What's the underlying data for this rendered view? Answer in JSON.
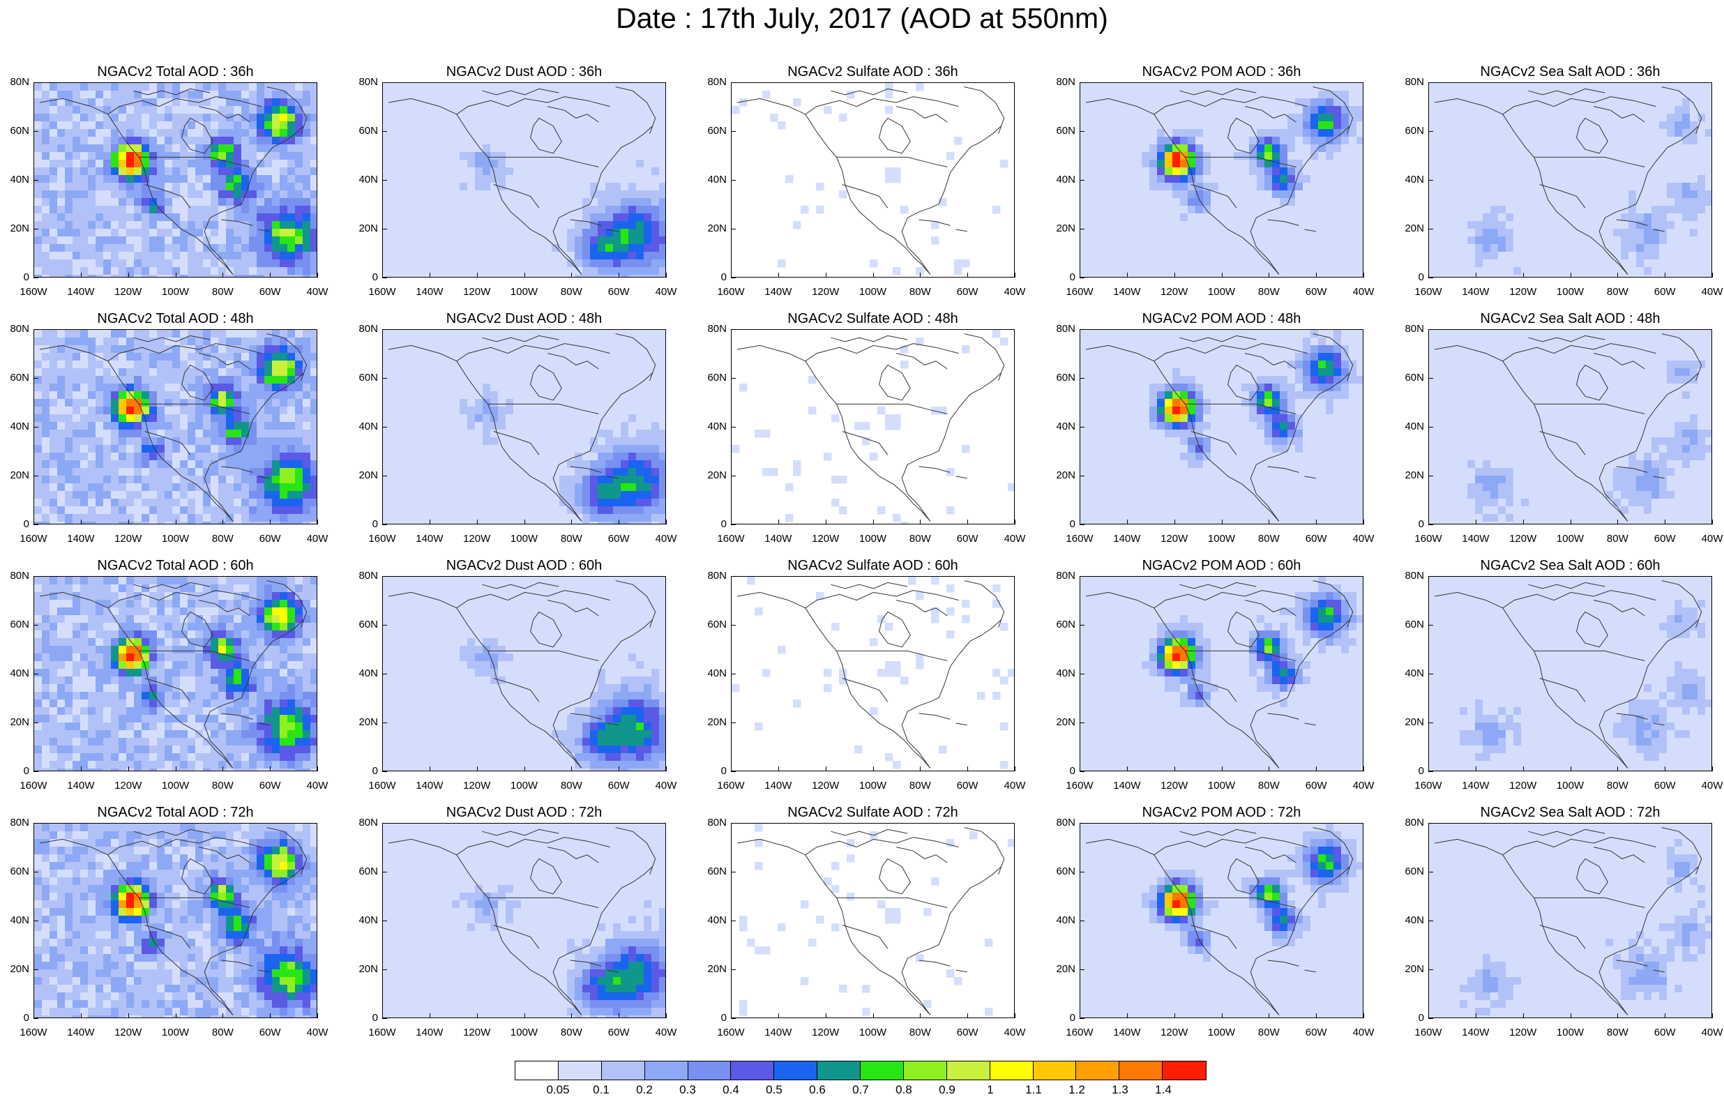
{
  "title": "Date : 17th July, 2017 (AOD at 550nm)",
  "lat_ticks": [
    "80N",
    "60N",
    "40N",
    "20N",
    "0"
  ],
  "lon_ticks": [
    "160W",
    "140W",
    "120W",
    "100W",
    "80W",
    "60W",
    "40W"
  ],
  "rows": [
    {
      "hour": "36h",
      "panels": [
        {
          "title": "NGACv2 Total AOD : 36h",
          "species": "total"
        },
        {
          "title": "NGACv2 Dust AOD : 36h",
          "species": "dust"
        },
        {
          "title": "NGACv2 Sulfate AOD : 36h",
          "species": "sulfate"
        },
        {
          "title": "NGACv2 POM AOD : 36h",
          "species": "pom"
        },
        {
          "title": "NGACv2 Sea Salt AOD : 36h",
          "species": "seasalt"
        }
      ]
    },
    {
      "hour": "48h",
      "panels": [
        {
          "title": "NGACv2 Total AOD : 48h",
          "species": "total"
        },
        {
          "title": "NGACv2 Dust AOD : 48h",
          "species": "dust"
        },
        {
          "title": "NGACv2 Sulfate AOD : 48h",
          "species": "sulfate"
        },
        {
          "title": "NGACv2 POM AOD : 48h",
          "species": "pom"
        },
        {
          "title": "NGACv2 Sea Salt AOD : 48h",
          "species": "seasalt"
        }
      ]
    },
    {
      "hour": "60h",
      "panels": [
        {
          "title": "NGACv2 Total AOD : 60h",
          "species": "total"
        },
        {
          "title": "NGACv2 Dust AOD : 60h",
          "species": "dust"
        },
        {
          "title": "NGACv2 Sulfate AOD : 60h",
          "species": "sulfate"
        },
        {
          "title": "NGACv2 POM AOD : 60h",
          "species": "pom"
        },
        {
          "title": "NGACv2 Sea Salt AOD : 60h",
          "species": "seasalt"
        }
      ]
    },
    {
      "hour": "72h",
      "panels": [
        {
          "title": "NGACv2 Total AOD : 72h",
          "species": "total"
        },
        {
          "title": "NGACv2 Dust AOD : 72h",
          "species": "dust"
        },
        {
          "title": "NGACv2 Sulfate AOD : 72h",
          "species": "sulfate"
        },
        {
          "title": "NGACv2 POM AOD : 72h",
          "species": "pom"
        },
        {
          "title": "NGACv2 Sea Salt  AOD : 72h",
          "species": "seasalt"
        }
      ]
    }
  ],
  "colorbar": {
    "labels": [
      "0.05",
      "0.1",
      "0.2",
      "0.3",
      "0.4",
      "0.5",
      "0.6",
      "0.7",
      "0.8",
      "0.9",
      "1",
      "1.1",
      "1.2",
      "1.3",
      "1.4"
    ],
    "colors": [
      "#ffffff",
      "#d4defc",
      "#b2c2f8",
      "#8da8f5",
      "#7890f0",
      "#5a5ae6",
      "#1a64f0",
      "#10968c",
      "#28e614",
      "#8ef01e",
      "#c8f03c",
      "#ffff00",
      "#ffc800",
      "#ffa000",
      "#ff7800",
      "#ff1e00"
    ]
  }
}
